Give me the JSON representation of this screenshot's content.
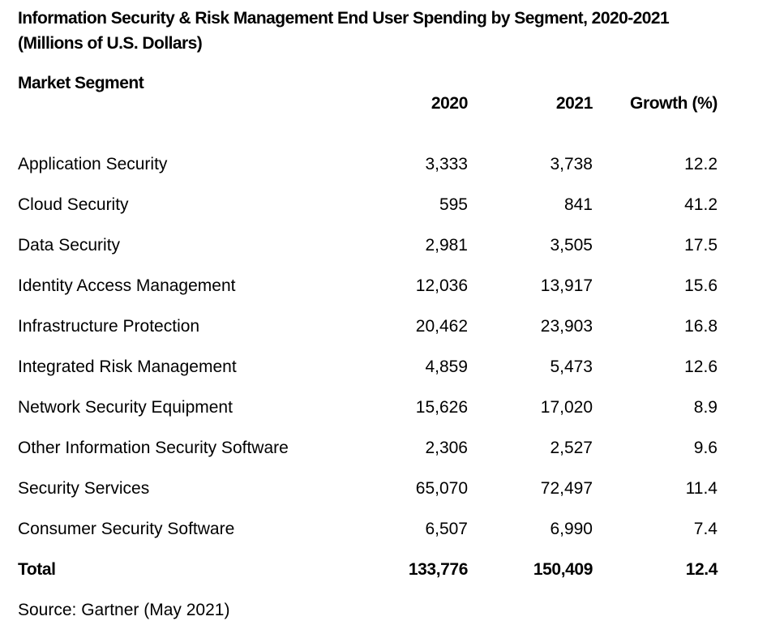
{
  "document": {
    "title_line1": "Information Security & Risk Management End User Spending by Segment, 2020-2021",
    "title_line2": "(Millions of U.S. Dollars)",
    "source": "Source: Gartner (May 2021)"
  },
  "table": {
    "headers": {
      "segment": "Market Segment",
      "y2020": "2020",
      "y2021": "2021",
      "growth": "Growth (%)"
    },
    "rows": [
      {
        "segment": "Application Security",
        "y2020": "3,333",
        "y2021": "3,738",
        "growth": "12.2"
      },
      {
        "segment": "Cloud Security",
        "y2020": "595",
        "y2021": "841",
        "growth": "41.2"
      },
      {
        "segment": "Data Security",
        "y2020": "2,981",
        "y2021": "3,505",
        "growth": "17.5"
      },
      {
        "segment": "Identity Access Management",
        "y2020": "12,036",
        "y2021": "13,917",
        "growth": "15.6"
      },
      {
        "segment": "Infrastructure Protection",
        "y2020": "20,462",
        "y2021": "23,903",
        "growth": "16.8"
      },
      {
        "segment": "Integrated Risk Management",
        "y2020": "4,859",
        "y2021": "5,473",
        "growth": "12.6"
      },
      {
        "segment": "Network Security Equipment",
        "y2020": "15,626",
        "y2021": "17,020",
        "growth": "8.9"
      },
      {
        "segment": "Other Information Security Software",
        "y2020": "2,306",
        "y2021": "2,527",
        "growth": "9.6"
      },
      {
        "segment": "Security Services",
        "y2020": "65,070",
        "y2021": "72,497",
        "growth": "11.4"
      },
      {
        "segment": "Consumer Security Software",
        "y2020": "6,507",
        "y2021": "6,990",
        "growth": "7.4"
      }
    ],
    "total": {
      "segment": "Total",
      "y2020": "133,776",
      "y2021": "150,409",
      "growth": "12.4"
    }
  }
}
